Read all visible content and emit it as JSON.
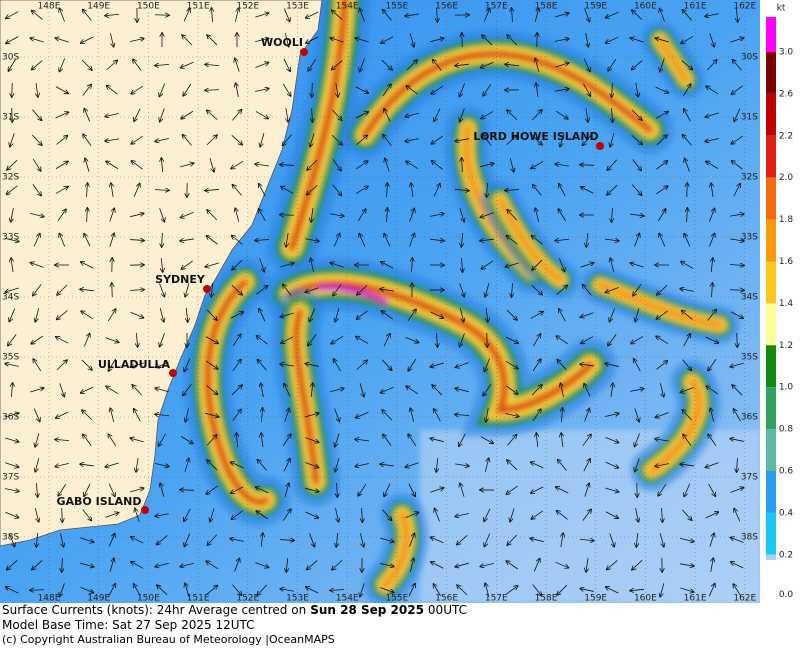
{
  "map": {
    "longitude_labels": [
      "148E",
      "149E",
      "150E",
      "151E",
      "152E",
      "153E",
      "154E",
      "155E",
      "156E",
      "157E",
      "158E",
      "159E",
      "160E",
      "161E",
      "162E"
    ],
    "latitude_labels": [
      "30S",
      "31S",
      "32S",
      "33S",
      "34S",
      "35S",
      "36S",
      "37S",
      "38S"
    ],
    "places": [
      {
        "name": "WOOLI"
      },
      {
        "name": "SYDNEY"
      },
      {
        "name": "ULLADULLA"
      },
      {
        "name": "LORD HOWE ISLAND"
      },
      {
        "name": "GABO ISLAND"
      }
    ]
  },
  "colorbar": {
    "unit": "kt",
    "ticks": [
      "3.0",
      "2.6",
      "2.2",
      "2.0",
      "1.8",
      "1.6",
      "1.4",
      "1.2",
      "1.0",
      "0.8",
      "0.6",
      "0.4",
      "0.2",
      "0.0"
    ]
  },
  "caption": {
    "line1": {
      "prefix": "Surface Currents (knots): 24hr Average centred on",
      "date": "Sun 28 Sep 2025",
      "suffix": "00UTC"
    },
    "line2": "Model Base Time: Sat 27 Sep 2025 12UTC",
    "line3": {
      "copyright": "(c) Copyright Australian Bureau of Meteorology |",
      "brand": "OceanMAPS"
    }
  }
}
